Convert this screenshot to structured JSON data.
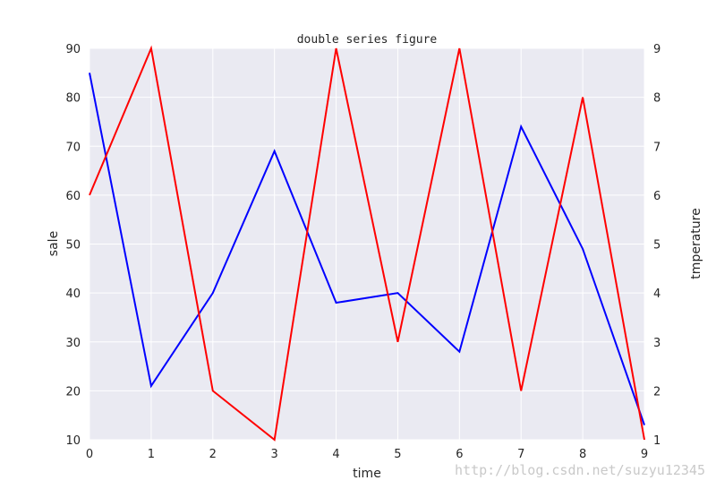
{
  "chart_data": {
    "type": "line",
    "title": "double series figure",
    "xlabel": "time",
    "ylabel_left": "sale",
    "ylabel_right": "tmperature",
    "x": [
      0,
      1,
      2,
      3,
      4,
      5,
      6,
      7,
      8,
      9
    ],
    "xlim": [
      0,
      9
    ],
    "ylim_left": [
      10,
      90
    ],
    "ylim_right": [
      1,
      9
    ],
    "x_ticks": [
      "0",
      "1",
      "2",
      "3",
      "4",
      "5",
      "6",
      "7",
      "8",
      "9"
    ],
    "y_ticks_left": [
      "10",
      "20",
      "30",
      "40",
      "50",
      "60",
      "70",
      "80",
      "90"
    ],
    "y_ticks_right": [
      "1",
      "2",
      "3",
      "4",
      "5",
      "6",
      "7",
      "8",
      "9"
    ],
    "grid": true,
    "series": [
      {
        "axis": "left",
        "color": "#0000ff",
        "values": [
          85,
          21,
          40,
          69,
          38,
          40,
          28,
          74,
          49,
          13
        ]
      },
      {
        "axis": "right",
        "color": "#ff0000",
        "values": [
          6,
          9,
          2,
          1,
          9,
          3,
          9,
          2,
          8,
          1
        ]
      }
    ],
    "plot_background": "#eaeaf2",
    "grid_color": "#ffffff"
  },
  "watermark": "http://blog.csdn.net/suzyu12345"
}
